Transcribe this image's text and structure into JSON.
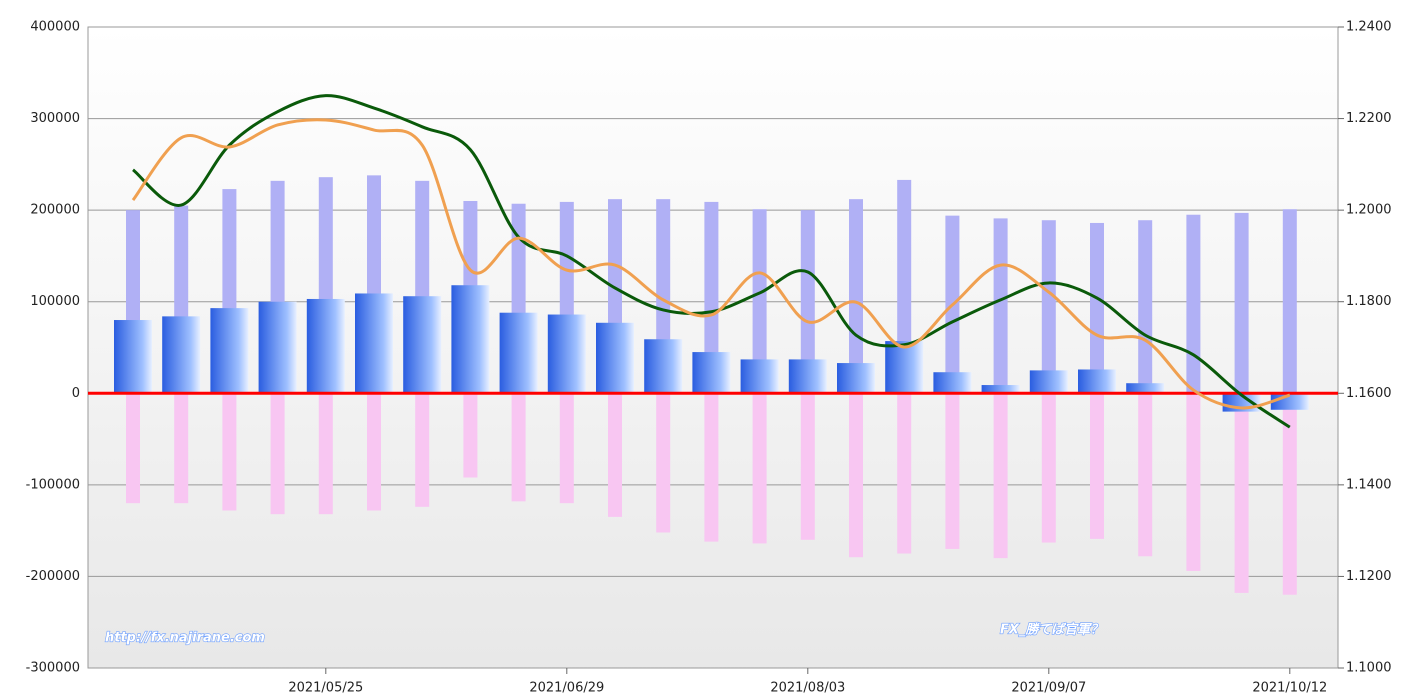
{
  "chart_data": {
    "type": "bar",
    "categories": [
      null,
      null,
      null,
      null,
      "2021/05/25",
      null,
      null,
      null,
      null,
      "2021/06/29",
      null,
      null,
      null,
      null,
      "2021/08/03",
      null,
      null,
      null,
      null,
      "2021/09/07",
      null,
      null,
      null,
      null,
      "2021/10/12"
    ],
    "ylim": [
      -300000,
      400000
    ],
    "yticks": [
      -300000,
      -200000,
      -100000,
      0,
      100000,
      200000,
      300000,
      400000
    ],
    "y2lim": [
      1.1,
      1.24
    ],
    "y2ticks": [
      {
        "value": 1.1,
        "label": "1.1000"
      },
      {
        "value": 1.12,
        "label": "1.1200"
      },
      {
        "value": 1.14,
        "label": "1.1400"
      },
      {
        "value": 1.16,
        "label": "1.1600"
      },
      {
        "value": 1.18,
        "label": "1.1800"
      },
      {
        "value": 1.2,
        "label": "1.2000"
      },
      {
        "value": 1.22,
        "label": "1.2200"
      },
      {
        "value": 1.24,
        "label": "1.2400"
      }
    ],
    "grid": true,
    "zero_line_color": "#ff0000",
    "series": [
      {
        "type": "bar",
        "color": "#b0b0f5",
        "values": [
          200000,
          205000,
          223000,
          232000,
          236000,
          238000,
          232000,
          210000,
          207000,
          209000,
          212000,
          212000,
          209000,
          201000,
          200000,
          212000,
          233000,
          194000,
          191000,
          189000,
          186000,
          189000,
          195000,
          197000,
          201000
        ]
      },
      {
        "type": "bar",
        "color": "#f8c6f2",
        "values": [
          -120000,
          -120000,
          -128000,
          -132000,
          -132000,
          -128000,
          -124000,
          -92000,
          -118000,
          -120000,
          -135000,
          -152000,
          -162000,
          -164000,
          -160000,
          -179000,
          -175000,
          -170000,
          -180000,
          -163000,
          -159000,
          -178000,
          -194000,
          -218000,
          -220000
        ]
      },
      {
        "type": "bar",
        "color": "#3a6ee8",
        "values": [
          80000,
          84000,
          93000,
          100000,
          103000,
          109000,
          106000,
          118000,
          88000,
          86000,
          77000,
          59000,
          45000,
          37000,
          37000,
          33000,
          57000,
          23000,
          9000,
          25000,
          26000,
          11000,
          1000,
          -20000,
          -18000
        ]
      },
      {
        "type": "line",
        "axis": "y2",
        "color": "#0a5a0a",
        "values": [
          1.2088,
          1.2011,
          1.2142,
          1.2215,
          1.225,
          1.2223,
          1.2182,
          1.2132,
          1.1941,
          1.19,
          1.183,
          1.1782,
          1.1778,
          1.1819,
          1.1865,
          1.1727,
          1.1706,
          1.1756,
          1.1804,
          1.1841,
          1.1808,
          1.1727,
          1.1684,
          1.1596,
          1.1526
        ]
      },
      {
        "type": "line",
        "axis": "y2",
        "color": "#f0a050",
        "values": [
          1.2022,
          1.2158,
          1.2138,
          1.2186,
          1.2197,
          1.2175,
          1.2142,
          1.1869,
          1.1939,
          1.1869,
          1.188,
          1.1804,
          1.1771,
          1.1863,
          1.1756,
          1.1799,
          1.1701,
          1.1793,
          1.188,
          1.1821,
          1.1727,
          1.1716,
          1.1607,
          1.1568,
          1.1596
        ]
      }
    ],
    "watermarks": [
      "http://fx.najirane.com",
      "FX_勝てば官軍？"
    ]
  }
}
